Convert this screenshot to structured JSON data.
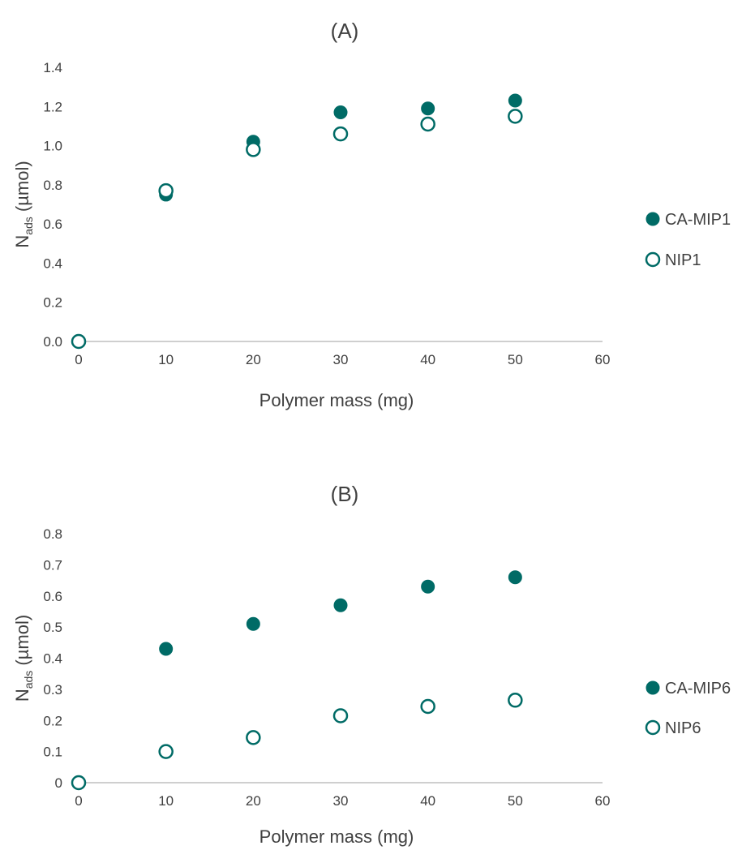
{
  "chart_data": [
    {
      "type": "scatter",
      "title": "(A)",
      "xlabel": "Polymer mass (mg)",
      "ylabel_main": "N",
      "ylabel_sub": "ads",
      "ylabel_unit": " (µmol)",
      "xlim": [
        0,
        60
      ],
      "ylim": [
        0,
        1.4
      ],
      "x_ticks": [
        0,
        10,
        20,
        30,
        40,
        50,
        60
      ],
      "x_tick_labels": [
        "0",
        "10",
        "20",
        "30",
        "40",
        "50",
        "60"
      ],
      "y_ticks": [
        0,
        0.2,
        0.4,
        0.6,
        0.8,
        1.0,
        1.2,
        1.4
      ],
      "y_tick_labels": [
        "0.0",
        "0.2",
        "0.4",
        "0.6",
        "0.8",
        "1.0",
        "1.2",
        "1.4"
      ],
      "grid": false,
      "legend_position": "right",
      "series": [
        {
          "name": "CA-MIP1",
          "marker": "filled-circle",
          "color": "#006b66",
          "x": [
            0,
            10,
            20,
            30,
            40,
            50
          ],
          "y": [
            0.0,
            0.75,
            1.02,
            1.17,
            1.19,
            1.23
          ]
        },
        {
          "name": "NIP1",
          "marker": "open-circle",
          "color": "#006b66",
          "x": [
            0,
            10,
            20,
            30,
            40,
            50
          ],
          "y": [
            0.0,
            0.77,
            0.98,
            1.06,
            1.11,
            1.15
          ]
        }
      ]
    },
    {
      "type": "scatter",
      "title": "(B)",
      "xlabel": "Polymer mass (mg)",
      "ylabel_main": "N",
      "ylabel_sub": "ads",
      "ylabel_unit": " (µmol)",
      "xlim": [
        0,
        60
      ],
      "ylim": [
        0,
        0.8
      ],
      "x_ticks": [
        0,
        10,
        20,
        30,
        40,
        50,
        60
      ],
      "x_tick_labels": [
        "0",
        "10",
        "20",
        "30",
        "40",
        "50",
        "60"
      ],
      "y_ticks": [
        0,
        0.1,
        0.2,
        0.3,
        0.4,
        0.5,
        0.6,
        0.7,
        0.8
      ],
      "y_tick_labels": [
        "0",
        "0.1",
        "0.2",
        "0.3",
        "0.4",
        "0.5",
        "0.6",
        "0.7",
        "0.8"
      ],
      "grid": false,
      "legend_position": "right",
      "series": [
        {
          "name": "CA-MIP6",
          "marker": "filled-circle",
          "color": "#006b66",
          "x": [
            0,
            10,
            20,
            30,
            40,
            50
          ],
          "y": [
            0.0,
            0.43,
            0.51,
            0.57,
            0.63,
            0.66
          ]
        },
        {
          "name": "NIP6",
          "marker": "open-circle",
          "color": "#006b66",
          "x": [
            0,
            10,
            20,
            30,
            40,
            50
          ],
          "y": [
            0.0,
            0.1,
            0.145,
            0.215,
            0.245,
            0.265
          ]
        }
      ]
    }
  ]
}
